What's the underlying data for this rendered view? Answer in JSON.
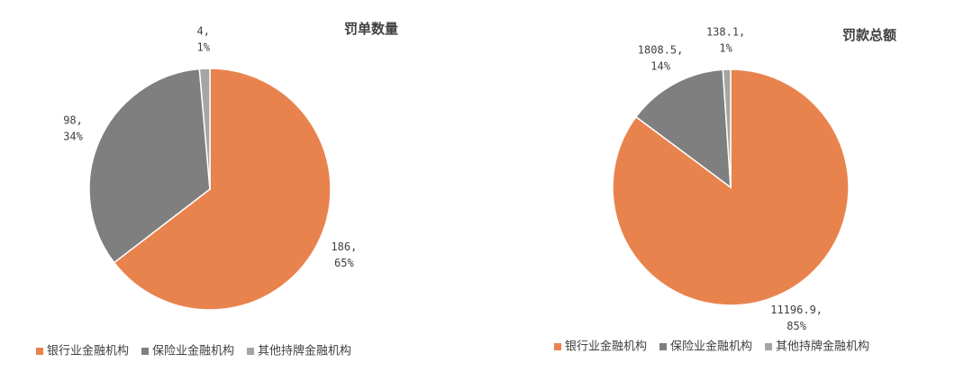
{
  "chart_data": [
    {
      "type": "pie",
      "title": "罚单数量",
      "categories": [
        "银行业金融机构",
        "保险业金融机构",
        "其他持牌金融机构"
      ],
      "values": [
        186,
        98,
        4
      ],
      "value_labels": [
        "186,",
        "98,",
        "4,"
      ],
      "percents": [
        65,
        34,
        1
      ],
      "percent_labels": [
        "65%",
        "34%",
        "1%"
      ],
      "colors": [
        "#e9834e",
        "#7f7f7f",
        "#a5a5a5"
      ]
    },
    {
      "type": "pie",
      "title": "罚款总额",
      "categories": [
        "银行业金融机构",
        "保险业金融机构",
        "其他持牌金融机构"
      ],
      "values": [
        11196.9,
        1808.5,
        138.1
      ],
      "value_labels": [
        "11196.9,",
        "1808.5,",
        "138.1,"
      ],
      "percents": [
        85,
        14,
        1
      ],
      "percent_labels": [
        "85%",
        "14%",
        "1%"
      ],
      "colors": [
        "#e9834e",
        "#7f7f7f",
        "#a5a5a5"
      ]
    }
  ]
}
